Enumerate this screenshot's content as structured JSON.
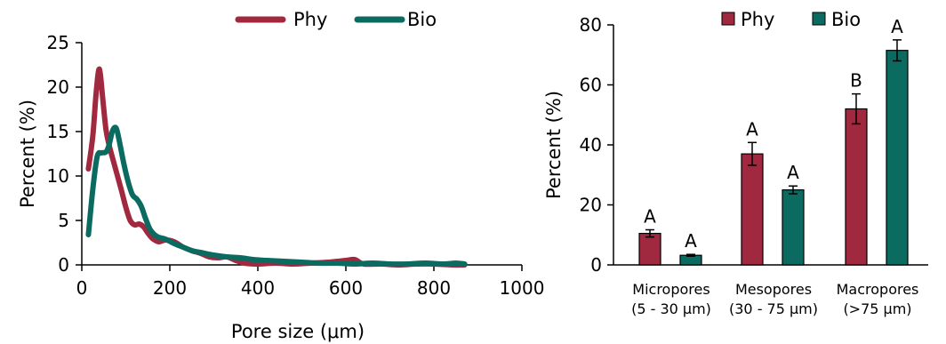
{
  "colors": {
    "phy": "#a0283f",
    "bio": "#0c6b61"
  },
  "chart_data": [
    {
      "type": "line",
      "xlabel": "Pore size (μm)",
      "ylabel": "Percent (%)",
      "xlim": [
        0,
        1000
      ],
      "ylim": [
        0,
        25
      ],
      "xticks": [
        "0",
        "200",
        "400",
        "600",
        "800",
        "1000"
      ],
      "yticks": [
        "0",
        "5",
        "10",
        "15",
        "20",
        "25"
      ],
      "legend": "top",
      "series": [
        {
          "name": "Phy",
          "x": [
            15,
            25,
            32,
            38,
            42,
            48,
            55,
            62,
            70,
            80,
            90,
            100,
            110,
            120,
            130,
            140,
            150,
            160,
            175,
            190,
            210,
            230,
            250,
            270,
            290,
            310,
            330,
            350,
            370,
            400,
            440,
            480,
            520,
            560,
            600,
            620,
            640,
            680,
            720,
            760,
            800,
            840,
            870
          ],
          "y": [
            10.8,
            14.5,
            19,
            21.8,
            21.5,
            18.5,
            15.2,
            13.5,
            12,
            10.2,
            8.4,
            6.5,
            5,
            4.5,
            4.6,
            4.3,
            3.6,
            3,
            2.6,
            2.8,
            2.6,
            2,
            1.6,
            1.3,
            0.9,
            0.8,
            0.9,
            0.5,
            0.2,
            0.1,
            0.2,
            0.1,
            0.2,
            0.3,
            0.5,
            0.6,
            0.1,
            0.1,
            0,
            0.1,
            0.1,
            0,
            0
          ]
        },
        {
          "name": "Bio",
          "x": [
            15,
            25,
            35,
            45,
            55,
            62,
            70,
            78,
            85,
            95,
            105,
            115,
            125,
            135,
            145,
            155,
            165,
            175,
            190,
            210,
            230,
            250,
            270,
            300,
            330,
            360,
            390,
            420,
            460,
            500,
            540,
            580,
            620,
            660,
            700,
            740,
            780,
            820,
            850,
            870
          ],
          "y": [
            3.4,
            8.5,
            12.2,
            12.6,
            12.7,
            13.5,
            15.1,
            15.4,
            14,
            11.5,
            9.4,
            7.9,
            7.4,
            6.6,
            5.2,
            4,
            3.4,
            3.1,
            2.9,
            2.4,
            2,
            1.6,
            1.4,
            1.1,
            0.9,
            0.8,
            0.6,
            0.5,
            0.4,
            0.3,
            0.2,
            0.2,
            0.1,
            0.2,
            0.1,
            0.1,
            0.2,
            0.1,
            0.2,
            0.1
          ]
        }
      ]
    },
    {
      "type": "bar",
      "ylabel": "Percent (%)",
      "ylim": [
        0,
        80
      ],
      "yticks": [
        "0",
        "20",
        "40",
        "60",
        "80"
      ],
      "legend": "top",
      "categories": [
        [
          "Micropores",
          "(5 - 30 μm)"
        ],
        [
          "Mesopores",
          "(30 - 75 μm)"
        ],
        [
          "Macropores",
          "(>75 μm)"
        ]
      ],
      "series": [
        {
          "name": "Phy",
          "values": [
            10.5,
            37,
            52
          ],
          "errors": [
            1.2,
            3.8,
            5
          ],
          "labels": [
            "A",
            "A",
            "B"
          ]
        },
        {
          "name": "Bio",
          "values": [
            3.2,
            25,
            71.5
          ],
          "errors": [
            0.3,
            1.3,
            3.5
          ],
          "labels": [
            "A",
            "A",
            "A"
          ]
        }
      ]
    }
  ]
}
